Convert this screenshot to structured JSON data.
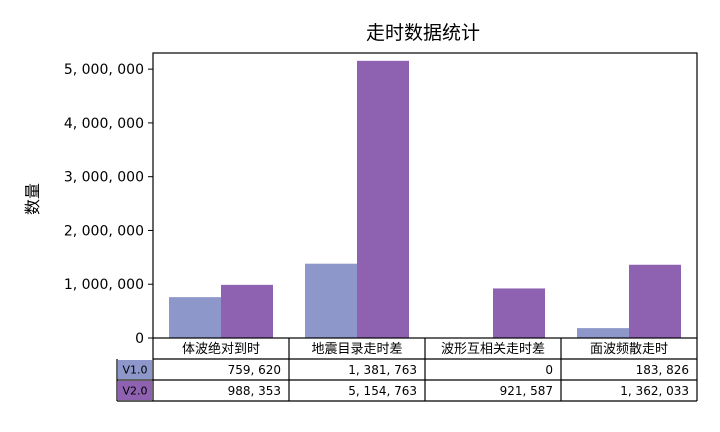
{
  "chart_data": {
    "type": "bar",
    "title": "走时数据统计",
    "xlabel": "",
    "ylabel": "数量",
    "ylim": [
      0,
      5300000
    ],
    "yticks": [
      0,
      1000000,
      2000000,
      3000000,
      4000000,
      5000000
    ],
    "ytick_labels": [
      "0",
      "1, 000, 000",
      "2, 000, 000",
      "3, 000, 000",
      "4, 000, 000",
      "5, 000, 000"
    ],
    "categories": [
      "体波绝对到时",
      "地震目录走时差",
      "波形互相关走时差",
      "面波频散走时"
    ],
    "series": [
      {
        "name": "V1.0",
        "color": "#8e97c9",
        "values": [
          759620,
          1381763,
          0,
          183826
        ],
        "labels": [
          "759, 620",
          "1, 381, 763",
          "0",
          "183, 826"
        ]
      },
      {
        "name": "V2.0",
        "color": "#8e62b1",
        "values": [
          988353,
          5154763,
          921587,
          1362033
        ],
        "labels": [
          "988, 353",
          "5, 154, 763",
          "921, 587",
          "1, 362, 033"
        ]
      }
    ],
    "legend": "table-below",
    "grid": false
  }
}
